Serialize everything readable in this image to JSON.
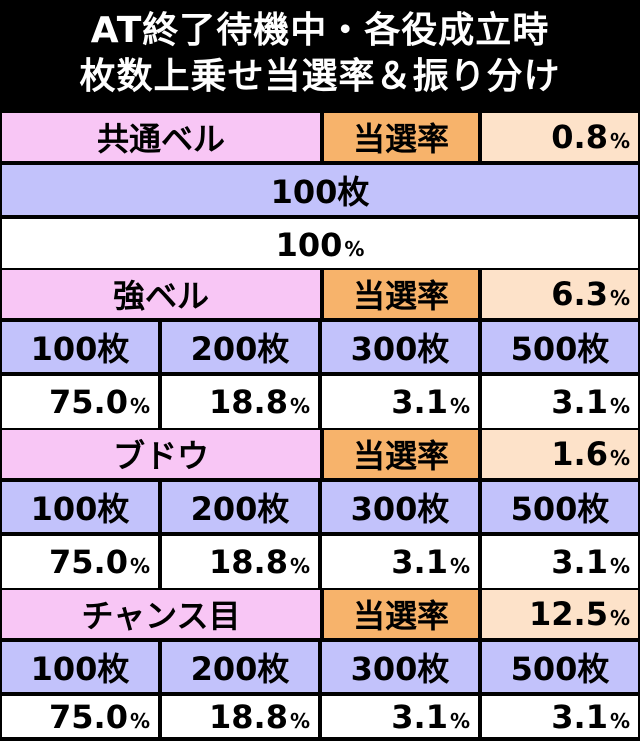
{
  "header": {
    "line1": "AT終了待機中・各役成立時",
    "line2": "枚数上乗せ当選率＆振り分け"
  },
  "rate_label": "当選率",
  "percent_sign": "%",
  "sections": [
    {
      "name": "共通ベル",
      "rate": "0.8",
      "medals": [
        "100枚"
      ],
      "dist": [
        "100"
      ]
    },
    {
      "name": "強ベル",
      "rate": "6.3",
      "medals": [
        "100枚",
        "200枚",
        "300枚",
        "500枚"
      ],
      "dist": [
        "75.0",
        "18.8",
        "3.1",
        "3.1"
      ]
    },
    {
      "name": "ブドウ",
      "rate": "1.6",
      "medals": [
        "100枚",
        "200枚",
        "300枚",
        "500枚"
      ],
      "dist": [
        "75.0",
        "18.8",
        "3.1",
        "3.1"
      ]
    },
    {
      "name": "チャンス目",
      "rate": "12.5",
      "medals": [
        "100枚",
        "200枚",
        "300枚",
        "500枚"
      ],
      "dist": [
        "75.0",
        "18.8",
        "3.1",
        "3.1"
      ]
    }
  ]
}
